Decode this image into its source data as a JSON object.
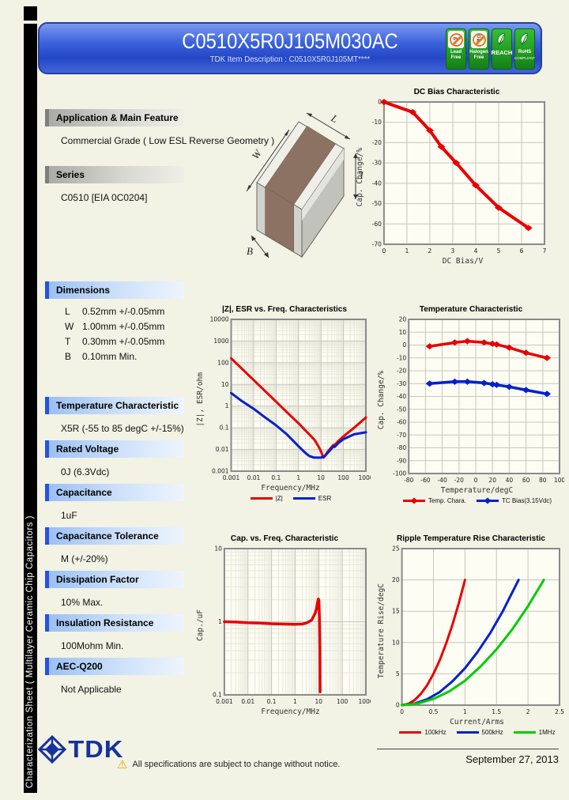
{
  "palette": {
    "header_blue": "#2d52d8",
    "section_bar_blue": "#2850e0",
    "badge_green": "#1f9a1f",
    "series_red": "#e80000",
    "series_blue": "#0020cc",
    "series_green": "#00cc00"
  },
  "sidebar": {
    "vertical_text": "Characterization Sheet ( Multilayer Ceramic Chip Capacitors )"
  },
  "header": {
    "title": "C0510X5R0J105M030AC",
    "subtitle": "TDK Item Description : C0510X5R0J105MT****",
    "badges": [
      {
        "type": "prohibit",
        "symbol": "Pb",
        "label": "Lead Free",
        "icon": "lead-free-icon"
      },
      {
        "type": "prohibit",
        "symbol": "Cl Br",
        "label": "Halogen Free",
        "icon": "halogen-free-icon"
      },
      {
        "type": "leaf",
        "label": "REACH",
        "big": true,
        "icon": "leaf-icon"
      },
      {
        "type": "leaf",
        "label": "RoHS",
        "sub": "COMPLIANT",
        "icon": "leaf-icon"
      }
    ]
  },
  "sections": {
    "application": {
      "title": "Application & Main Feature",
      "body": "Commercial Grade ( Low ESL Reverse Geometry )"
    },
    "series": {
      "title": "Series",
      "body": "C0510 [EIA 0C0204]"
    },
    "dimensions": {
      "title": "Dimensions",
      "rows": [
        {
          "key": "L",
          "value": "0.52mm +/-0.05mm"
        },
        {
          "key": "W",
          "value": "1.00mm +/-0.05mm"
        },
        {
          "key": "T",
          "value": "0.30mm +/-0.05mm"
        },
        {
          "key": "B",
          "value": "0.10mm Min."
        }
      ]
    },
    "temperature_characteristic": {
      "title": "Temperature Characteristic",
      "body": "X5R (-55 to 85 degC +/-15%)"
    },
    "rated_voltage": {
      "title": "Rated Voltage",
      "body": "0J (6.3Vdc)"
    },
    "capacitance": {
      "title": "Capacitance",
      "body": "1uF"
    },
    "capacitance_tolerance": {
      "title": "Capacitance Tolerance",
      "body": "M (+/-20%)"
    },
    "dissipation_factor": {
      "title": "Dissipation Factor",
      "body": "10% Max."
    },
    "insulation_resistance": {
      "title": "Insulation Resistance",
      "body": "100Mohm Min."
    },
    "aec_q200": {
      "title": "AEC-Q200",
      "body": "Not Applicable"
    }
  },
  "diagram": {
    "labels": {
      "w": "W",
      "l": "L",
      "t": "T",
      "b": "B"
    }
  },
  "chart_data": [
    {
      "id": "dc-bias",
      "type": "line",
      "title": "DC Bias Characteristic",
      "xlabel": "DC Bias/V",
      "ylabel": "Cap. Change/%",
      "xscale": "linear",
      "yscale": "linear",
      "xlim": [
        0,
        7
      ],
      "ylim": [
        -70,
        0
      ],
      "xticks": [
        0,
        1,
        2,
        3,
        4,
        5,
        6,
        7
      ],
      "yticks": [
        0,
        -10,
        -20,
        -30,
        -40,
        -50,
        -60,
        -70
      ],
      "grid": true,
      "legend_position": "none",
      "series": [
        {
          "name": "DC Bias",
          "color": "#e80000",
          "width": 4,
          "marker": true,
          "points": [
            [
              0,
              0
            ],
            [
              1.25,
              -5
            ],
            [
              2,
              -14
            ],
            [
              2.5,
              -22
            ],
            [
              3.15,
              -30
            ],
            [
              4,
              -41
            ],
            [
              5,
              -52
            ],
            [
              6.3,
              -62
            ]
          ]
        }
      ]
    },
    {
      "id": "z-esr",
      "type": "line",
      "title": "|Z|, ESR vs. Freq. Characteristics",
      "xlabel": "Frequency/MHz",
      "ylabel": "|Z|, ESR/ohm",
      "xscale": "log",
      "yscale": "log",
      "xlim": [
        0.001,
        1000
      ],
      "ylim": [
        0.001,
        10000
      ],
      "xticks": [
        0.001,
        0.01,
        0.1,
        1,
        10,
        100,
        1000
      ],
      "yticks": [
        10000,
        1000,
        100,
        10,
        1,
        0.1,
        0.01,
        0.001
      ],
      "grid": true,
      "legend_position": "bottom",
      "series": [
        {
          "name": "|Z|",
          "color": "#e80000",
          "width": 3,
          "marker": false,
          "points": [
            [
              0.001,
              160
            ],
            [
              0.003,
              53
            ],
            [
              0.01,
              16
            ],
            [
              0.03,
              5.3
            ],
            [
              0.1,
              1.6
            ],
            [
              0.3,
              0.53
            ],
            [
              1,
              0.16
            ],
            [
              3,
              0.05
            ],
            [
              5,
              0.029
            ],
            [
              8,
              0.013
            ],
            [
              10,
              0.008
            ],
            [
              13,
              0.0042
            ],
            [
              15,
              0.005
            ],
            [
              20,
              0.008
            ],
            [
              30,
              0.013
            ],
            [
              35,
              0.016
            ],
            [
              40,
              0.016
            ],
            [
              60,
              0.025
            ],
            [
              100,
              0.04
            ],
            [
              300,
              0.1
            ],
            [
              1000,
              0.3
            ]
          ]
        },
        {
          "name": "ESR",
          "color": "#0020cc",
          "width": 3,
          "marker": false,
          "points": [
            [
              0.001,
              4
            ],
            [
              0.003,
              1.7
            ],
            [
              0.01,
              0.75
            ],
            [
              0.03,
              0.32
            ],
            [
              0.1,
              0.13
            ],
            [
              0.3,
              0.05
            ],
            [
              1,
              0.014
            ],
            [
              2,
              0.007
            ],
            [
              3,
              0.005
            ],
            [
              5,
              0.0042
            ],
            [
              10,
              0.0042
            ],
            [
              15,
              0.005
            ],
            [
              20,
              0.007
            ],
            [
              30,
              0.011
            ],
            [
              35,
              0.014
            ],
            [
              40,
              0.013
            ],
            [
              60,
              0.02
            ],
            [
              100,
              0.03
            ],
            [
              300,
              0.05
            ],
            [
              1000,
              0.062
            ]
          ]
        }
      ]
    },
    {
      "id": "temperature",
      "type": "line",
      "title": "Temperature Characteristic",
      "xlabel": "Temperature/degC",
      "ylabel": "Cap. Change/%",
      "xscale": "linear",
      "yscale": "linear",
      "xlim": [
        -80,
        100
      ],
      "ylim": [
        -100,
        20
      ],
      "xticks": [
        -80,
        -60,
        -40,
        -20,
        0,
        20,
        40,
        60,
        80,
        100
      ],
      "yticks": [
        20,
        10,
        0,
        -10,
        -20,
        -30,
        -40,
        -50,
        -60,
        -70,
        -80,
        -90,
        -100
      ],
      "grid": true,
      "legend_position": "bottom",
      "series": [
        {
          "name": "Temp. Chara.",
          "color": "#e80000",
          "width": 3.5,
          "marker": true,
          "points": [
            [
              -55,
              -1
            ],
            [
              -25,
              2
            ],
            [
              -10,
              3
            ],
            [
              10,
              2
            ],
            [
              20,
              1
            ],
            [
              25,
              0.5
            ],
            [
              40,
              -2
            ],
            [
              60,
              -6
            ],
            [
              85,
              -10
            ]
          ]
        },
        {
          "name": "TC Bias(3.15Vdc)",
          "color": "#0020cc",
          "width": 3.5,
          "marker": true,
          "points": [
            [
              -55,
              -30
            ],
            [
              -25,
              -28.5
            ],
            [
              -10,
              -28.5
            ],
            [
              10,
              -29.5
            ],
            [
              20,
              -30.5
            ],
            [
              25,
              -31
            ],
            [
              40,
              -32.5
            ],
            [
              60,
              -35
            ],
            [
              85,
              -38
            ]
          ]
        }
      ]
    },
    {
      "id": "cap-freq",
      "type": "line",
      "title": "Cap. vs. Freq. Characteristic",
      "xlabel": "Frequency/MHz",
      "ylabel": "Cap./uF",
      "xscale": "log",
      "yscale": "log",
      "xlim": [
        0.001,
        1000
      ],
      "ylim": [
        0.1,
        10
      ],
      "xticks": [
        0.001,
        0.01,
        0.1,
        1,
        10,
        100,
        1000
      ],
      "yticks": [
        10,
        1,
        0.1
      ],
      "grid": true,
      "legend_position": "none",
      "series": [
        {
          "name": "Cap.",
          "color": "#e80000",
          "width": 3.5,
          "marker": false,
          "points": [
            [
              0.001,
              1.0
            ],
            [
              0.003,
              0.99
            ],
            [
              0.01,
              0.97
            ],
            [
              0.03,
              0.96
            ],
            [
              0.1,
              0.94
            ],
            [
              0.3,
              0.93
            ],
            [
              1,
              0.92
            ],
            [
              2,
              0.93
            ],
            [
              3,
              0.96
            ],
            [
              5,
              1.05
            ],
            [
              7,
              1.3
            ],
            [
              8,
              1.5
            ],
            [
              9,
              1.85
            ],
            [
              9.7,
              2.05
            ],
            [
              10.2,
              1.9
            ],
            [
              10.8,
              1.0
            ],
            [
              11.2,
              0.4
            ],
            [
              11.5,
              0.11
            ]
          ]
        }
      ]
    },
    {
      "id": "ripple",
      "type": "line",
      "title": "Ripple Temperature Rise Characteristic",
      "xlabel": "Current/Arms",
      "ylabel": "Temperature Rise/degC",
      "xscale": "linear",
      "yscale": "linear",
      "xlim": [
        0,
        2.5
      ],
      "ylim": [
        0,
        25
      ],
      "xticks": [
        0,
        0.5,
        1,
        1.5,
        2,
        2.5
      ],
      "yticks": [
        0,
        5,
        10,
        15,
        20,
        25
      ],
      "grid": true,
      "legend_position": "bottom",
      "series": [
        {
          "name": "100kHz",
          "color": "#e80000",
          "width": 3,
          "marker": false,
          "points": [
            [
              0,
              0
            ],
            [
              0.1,
              0.2
            ],
            [
              0.2,
              0.8
            ],
            [
              0.3,
              1.8
            ],
            [
              0.4,
              3.2
            ],
            [
              0.5,
              5
            ],
            [
              0.6,
              7.2
            ],
            [
              0.7,
              9.8
            ],
            [
              0.8,
              12.8
            ],
            [
              0.9,
              16.2
            ],
            [
              1.0,
              20
            ]
          ]
        },
        {
          "name": "500kHz",
          "color": "#0020cc",
          "width": 3,
          "marker": false,
          "points": [
            [
              0,
              0
            ],
            [
              0.2,
              0.25
            ],
            [
              0.4,
              0.95
            ],
            [
              0.6,
              2.1
            ],
            [
              0.8,
              3.8
            ],
            [
              1.0,
              5.9
            ],
            [
              1.2,
              8.5
            ],
            [
              1.4,
              11.5
            ],
            [
              1.6,
              15
            ],
            [
              1.85,
              20
            ]
          ]
        },
        {
          "name": "1MHz",
          "color": "#00cc00",
          "width": 3,
          "marker": false,
          "points": [
            [
              0,
              0
            ],
            [
              0.25,
              0.25
            ],
            [
              0.5,
              1
            ],
            [
              0.75,
              2.2
            ],
            [
              1.0,
              3.9
            ],
            [
              1.25,
              6.2
            ],
            [
              1.5,
              8.9
            ],
            [
              1.75,
              12.1
            ],
            [
              2.0,
              15.8
            ],
            [
              2.25,
              20
            ]
          ]
        }
      ]
    }
  ],
  "footer": {
    "logo_text": "TDK",
    "notice": "All specifications are subject to change without notice.",
    "warning_symbol": "⚠",
    "date": "September 27, 2013"
  }
}
